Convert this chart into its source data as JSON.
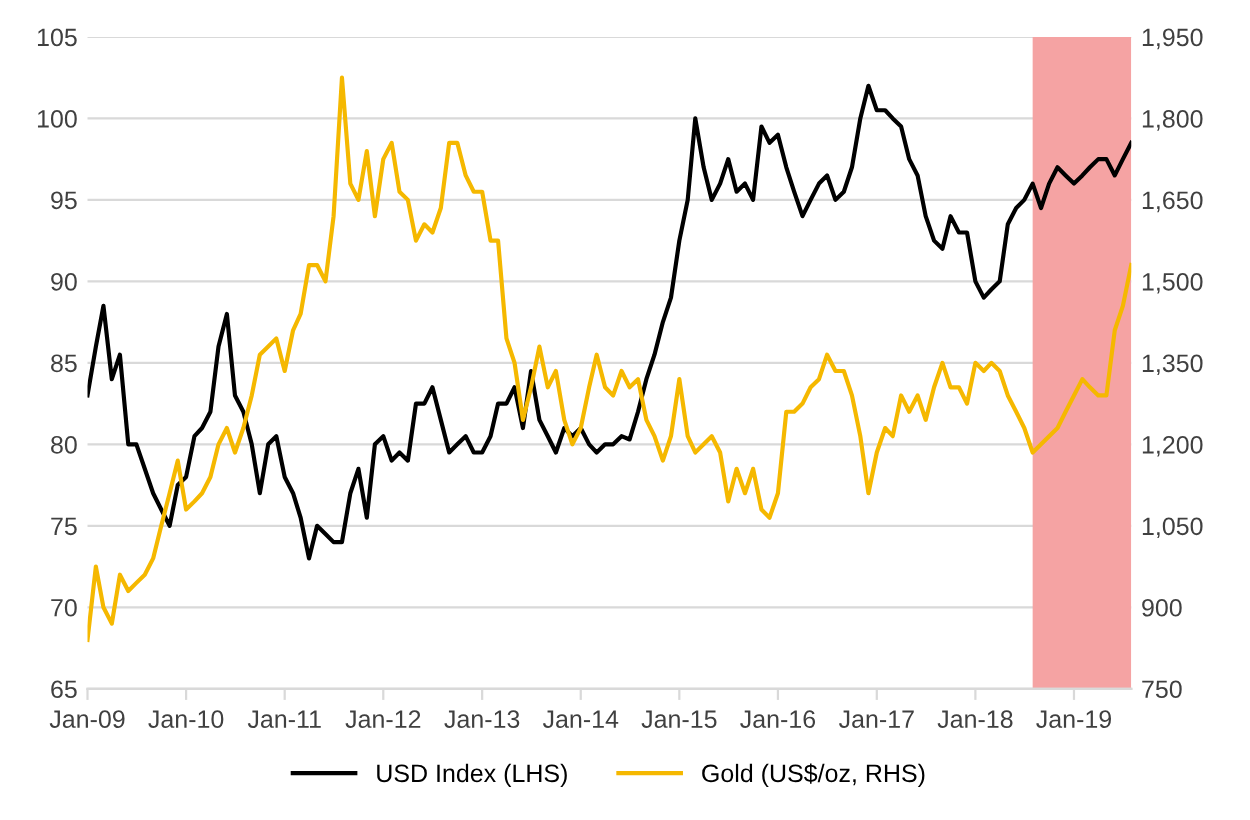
{
  "chart_data": {
    "type": "line",
    "x": [
      "2009-01",
      "2009-02",
      "2009-03",
      "2009-04",
      "2009-05",
      "2009-06",
      "2009-07",
      "2009-08",
      "2009-09",
      "2009-10",
      "2009-11",
      "2009-12",
      "2010-01",
      "2010-02",
      "2010-03",
      "2010-04",
      "2010-05",
      "2010-06",
      "2010-07",
      "2010-08",
      "2010-09",
      "2010-10",
      "2010-11",
      "2010-12",
      "2011-01",
      "2011-02",
      "2011-03",
      "2011-04",
      "2011-05",
      "2011-06",
      "2011-07",
      "2011-08",
      "2011-09",
      "2011-10",
      "2011-11",
      "2011-12",
      "2012-01",
      "2012-02",
      "2012-03",
      "2012-04",
      "2012-05",
      "2012-06",
      "2012-07",
      "2012-08",
      "2012-09",
      "2012-10",
      "2012-11",
      "2012-12",
      "2013-01",
      "2013-02",
      "2013-03",
      "2013-04",
      "2013-05",
      "2013-06",
      "2013-07",
      "2013-08",
      "2013-09",
      "2013-10",
      "2013-11",
      "2013-12",
      "2014-01",
      "2014-02",
      "2014-03",
      "2014-04",
      "2014-05",
      "2014-06",
      "2014-07",
      "2014-08",
      "2014-09",
      "2014-10",
      "2014-11",
      "2014-12",
      "2015-01",
      "2015-02",
      "2015-03",
      "2015-04",
      "2015-05",
      "2015-06",
      "2015-07",
      "2015-08",
      "2015-09",
      "2015-10",
      "2015-11",
      "2015-12",
      "2016-01",
      "2016-02",
      "2016-03",
      "2016-04",
      "2016-05",
      "2016-06",
      "2016-07",
      "2016-08",
      "2016-09",
      "2016-10",
      "2016-11",
      "2016-12",
      "2017-01",
      "2017-02",
      "2017-03",
      "2017-04",
      "2017-05",
      "2017-06",
      "2017-07",
      "2017-08",
      "2017-09",
      "2017-10",
      "2017-11",
      "2017-12",
      "2018-01",
      "2018-02",
      "2018-03",
      "2018-04",
      "2018-05",
      "2018-06",
      "2018-07",
      "2018-08",
      "2018-09",
      "2018-10",
      "2018-11",
      "2018-12",
      "2019-01",
      "2019-02",
      "2019-03",
      "2019-04",
      "2019-05",
      "2019-06",
      "2019-07",
      "2019-08"
    ],
    "series": [
      {
        "name": "USD Index (LHS)",
        "color": "#000000",
        "values": [
          83,
          86,
          88.5,
          84,
          85.5,
          80,
          80,
          78.5,
          77,
          76,
          75,
          77.5,
          78,
          80.5,
          81,
          82,
          86,
          88,
          83,
          82,
          80,
          77,
          80,
          80.5,
          78,
          77,
          75.5,
          73,
          75,
          74.5,
          74,
          74,
          77,
          78.5,
          75.5,
          80,
          80.5,
          79,
          79.5,
          79,
          82.5,
          82.5,
          83.5,
          81.5,
          79.5,
          80,
          80.5,
          79.5,
          79.5,
          80.5,
          82.5,
          82.5,
          83.5,
          81,
          84.5,
          81.5,
          80.5,
          79.5,
          81,
          80.5,
          81,
          80,
          79.5,
          80,
          80,
          80.5,
          80.3,
          82,
          84,
          85.5,
          87.5,
          89,
          92.5,
          95,
          100,
          97,
          95,
          96,
          97.5,
          95.5,
          96,
          95,
          99.5,
          98.5,
          99,
          97,
          95.5,
          94,
          95,
          96,
          96.5,
          95,
          95.5,
          97,
          100,
          102,
          100.5,
          100.5,
          100,
          99.5,
          97.5,
          96.5,
          94,
          92.5,
          92,
          94,
          93,
          93,
          90,
          89,
          89.5,
          90,
          93.5,
          94.5,
          95,
          96,
          94.5,
          96,
          97,
          96.5,
          96,
          96.5,
          97,
          97.5,
          97.5,
          96.5,
          97.5,
          98.5
        ]
      },
      {
        "name": "Gold (US$/oz, RHS)",
        "color": "#f5b800",
        "axis": "y2",
        "values": [
          840,
          975,
          900,
          870,
          960,
          930,
          945,
          960,
          990,
          1050,
          1110,
          1170,
          1080,
          1095,
          1110,
          1140,
          1200,
          1230,
          1185,
          1230,
          1290,
          1365,
          1380,
          1395,
          1335,
          1410,
          1440,
          1530,
          1530,
          1500,
          1620,
          1875,
          1680,
          1650,
          1740,
          1620,
          1725,
          1755,
          1665,
          1650,
          1575,
          1605,
          1590,
          1635,
          1755,
          1755,
          1695,
          1665,
          1665,
          1575,
          1575,
          1395,
          1350,
          1245,
          1305,
          1380,
          1305,
          1335,
          1245,
          1200,
          1230,
          1305,
          1365,
          1305,
          1290,
          1335,
          1305,
          1320,
          1245,
          1215,
          1170,
          1215,
          1320,
          1215,
          1185,
          1200,
          1215,
          1185,
          1095,
          1155,
          1110,
          1155,
          1080,
          1065,
          1110,
          1260,
          1260,
          1275,
          1305,
          1320,
          1365,
          1335,
          1335,
          1290,
          1215,
          1110,
          1185,
          1230,
          1215,
          1290,
          1260,
          1290,
          1245,
          1305,
          1350,
          1305,
          1305,
          1275,
          1350,
          1335,
          1350,
          1335,
          1290,
          1260,
          1230,
          1185,
          1200,
          1215,
          1230,
          1260,
          1290,
          1320,
          1305,
          1290,
          1290,
          1410,
          1455,
          1530
        ]
      }
    ],
    "xlim": [
      "2009-01",
      "2019-08"
    ],
    "xticks": [
      {
        "value": "2009-01",
        "label": "Jan-09"
      },
      {
        "value": "2010-01",
        "label": "Jan-10"
      },
      {
        "value": "2011-01",
        "label": "Jan-11"
      },
      {
        "value": "2012-01",
        "label": "Jan-12"
      },
      {
        "value": "2013-01",
        "label": "Jan-13"
      },
      {
        "value": "2014-01",
        "label": "Jan-14"
      },
      {
        "value": "2015-01",
        "label": "Jan-15"
      },
      {
        "value": "2016-01",
        "label": "Jan-16"
      },
      {
        "value": "2017-01",
        "label": "Jan-17"
      },
      {
        "value": "2018-01",
        "label": "Jan-18"
      },
      {
        "value": "2019-01",
        "label": "Jan-19"
      }
    ],
    "ylim": [
      65,
      105
    ],
    "yticks": [
      65,
      70,
      75,
      80,
      85,
      90,
      95,
      100,
      105
    ],
    "y2lim": [
      750,
      1950
    ],
    "y2ticks": [
      {
        "value": 750,
        "label": "750"
      },
      {
        "value": 900,
        "label": "900"
      },
      {
        "value": 1050,
        "label": "1,050"
      },
      {
        "value": 1200,
        "label": "1,200"
      },
      {
        "value": 1350,
        "label": "1,350"
      },
      {
        "value": 1500,
        "label": "1,500"
      },
      {
        "value": 1650,
        "label": "1,650"
      },
      {
        "value": 1800,
        "label": "1,800"
      },
      {
        "value": 1950,
        "label": "1,950"
      }
    ],
    "bands": [
      {
        "axis": "x",
        "from": "2018-08",
        "to": "2019-08",
        "color": "#f5a3a3"
      }
    ],
    "grid": "y",
    "legend": "bottom",
    "line_style": "solid",
    "marker": "none"
  }
}
